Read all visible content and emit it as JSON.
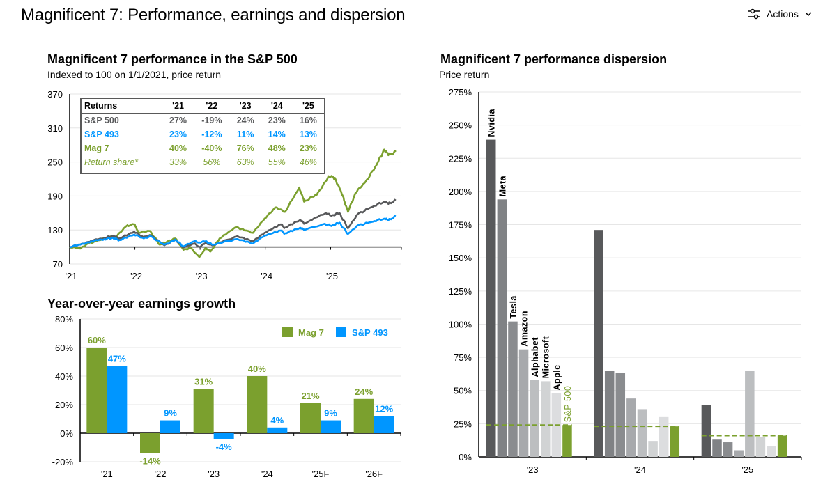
{
  "header": {
    "title": "Magnificent 7: Performance, earnings and dispersion",
    "actions_label": "Actions",
    "actions_icon": "sliders-icon",
    "chevron_icon": "chevron-down-icon"
  },
  "colors": {
    "sp500": "#58595b",
    "sp493": "#0096ff",
    "mag7": "#7ba02e"
  },
  "returns_table": {
    "header": [
      "Returns",
      "'21",
      "'22",
      "'23",
      "'24",
      "'25"
    ],
    "rows": [
      {
        "label": "S&P 500",
        "values": [
          "27%",
          "-19%",
          "24%",
          "23%",
          "16%"
        ]
      },
      {
        "label": "S&P 493",
        "values": [
          "23%",
          "-12%",
          "11%",
          "14%",
          "13%"
        ]
      },
      {
        "label": "Mag 7",
        "values": [
          "40%",
          "-40%",
          "76%",
          "48%",
          "23%"
        ]
      },
      {
        "label": "Return share*",
        "values": [
          "33%",
          "56%",
          "63%",
          "55%",
          "46%"
        ]
      }
    ]
  },
  "chart_data": [
    {
      "type": "line",
      "title": "Magnificent 7 performance in the S&P 500",
      "subtitle": "Indexed to 100 on 1/1/2021, price return",
      "xlim": [
        "2021-01-01",
        "2026-02-01"
      ],
      "ylim": [
        70,
        370
      ],
      "yticks": [
        70,
        130,
        190,
        250,
        310,
        370
      ],
      "xticks": [
        {
          "date": "2021-01-01",
          "label": "'21"
        },
        {
          "date": "2022-01-01",
          "label": "'22"
        },
        {
          "date": "2023-01-01",
          "label": "'23"
        },
        {
          "date": "2024-01-01",
          "label": "'24"
        },
        {
          "date": "2025-01-01",
          "label": "'25"
        }
      ],
      "grid": true,
      "series": [
        {
          "key": "mag7",
          "color": "#7ba02e",
          "points": [
            [
              "2021-01-01",
              100
            ],
            [
              "2021-03-01",
              97
            ],
            [
              "2021-04-15",
              106
            ],
            [
              "2021-06-01",
              110
            ],
            [
              "2021-08-01",
              117
            ],
            [
              "2021-09-15",
              118
            ],
            [
              "2021-11-15",
              137
            ],
            [
              "2021-12-28",
              140
            ],
            [
              "2022-01-25",
              125
            ],
            [
              "2022-03-28",
              128
            ],
            [
              "2022-05-20",
              104
            ],
            [
              "2022-08-15",
              115
            ],
            [
              "2022-09-30",
              95
            ],
            [
              "2022-11-10",
              98
            ],
            [
              "2022-12-28",
              82
            ],
            [
              "2023-02-01",
              98
            ],
            [
              "2023-03-01",
              92
            ],
            [
              "2023-04-20",
              115
            ],
            [
              "2023-07-20",
              135
            ],
            [
              "2023-10-25",
              125
            ],
            [
              "2023-12-28",
              150
            ],
            [
              "2024-03-01",
              170
            ],
            [
              "2024-04-20",
              162
            ],
            [
              "2024-07-10",
              205
            ],
            [
              "2024-08-05",
              180
            ],
            [
              "2024-10-15",
              192
            ],
            [
              "2024-12-20",
              225
            ],
            [
              "2025-01-25",
              222
            ],
            [
              "2025-03-10",
              190
            ],
            [
              "2025-04-08",
              162
            ],
            [
              "2025-05-20",
              195
            ],
            [
              "2025-07-15",
              215
            ],
            [
              "2025-09-15",
              245
            ],
            [
              "2025-10-28",
              272
            ],
            [
              "2025-11-20",
              262
            ],
            [
              "2025-12-31",
              268
            ]
          ]
        },
        {
          "key": "sp500",
          "color": "#58595b",
          "points": [
            [
              "2021-01-01",
              100
            ],
            [
              "2021-03-01",
              104
            ],
            [
              "2021-05-01",
              111
            ],
            [
              "2021-07-15",
              116
            ],
            [
              "2021-09-01",
              120
            ],
            [
              "2021-10-05",
              115
            ],
            [
              "2021-12-28",
              127
            ],
            [
              "2022-02-20",
              117
            ],
            [
              "2022-03-28",
              121
            ],
            [
              "2022-06-15",
              103
            ],
            [
              "2022-08-15",
              113
            ],
            [
              "2022-09-30",
              99
            ],
            [
              "2022-11-30",
              106
            ],
            [
              "2022-12-28",
              100
            ],
            [
              "2023-02-01",
              107
            ],
            [
              "2023-03-10",
              103
            ],
            [
              "2023-07-30",
              119
            ],
            [
              "2023-10-25",
              110
            ],
            [
              "2023-12-28",
              125
            ],
            [
              "2024-03-28",
              140
            ],
            [
              "2024-04-19",
              134
            ],
            [
              "2024-07-15",
              148
            ],
            [
              "2024-08-05",
              141
            ],
            [
              "2024-12-05",
              160
            ],
            [
              "2025-01-05",
              155
            ],
            [
              "2025-02-19",
              160
            ],
            [
              "2025-04-08",
              133
            ],
            [
              "2025-06-01",
              158
            ],
            [
              "2025-08-15",
              170
            ],
            [
              "2025-10-28",
              180
            ],
            [
              "2025-11-20",
              176
            ],
            [
              "2025-12-31",
              182
            ]
          ]
        },
        {
          "key": "sp493",
          "color": "#0096ff",
          "points": [
            [
              "2021-01-01",
              100
            ],
            [
              "2021-03-01",
              104
            ],
            [
              "2021-05-01",
              110
            ],
            [
              "2021-07-15",
              114
            ],
            [
              "2021-09-01",
              116
            ],
            [
              "2021-10-05",
              112
            ],
            [
              "2021-12-28",
              122
            ],
            [
              "2022-02-20",
              115
            ],
            [
              "2022-03-28",
              119
            ],
            [
              "2022-06-15",
              104
            ],
            [
              "2022-08-15",
              113
            ],
            [
              "2022-09-30",
              101
            ],
            [
              "2022-11-30",
              110
            ],
            [
              "2022-12-28",
              108
            ],
            [
              "2023-02-01",
              110
            ],
            [
              "2023-03-10",
              104
            ],
            [
              "2023-07-30",
              114
            ],
            [
              "2023-10-25",
              106
            ],
            [
              "2023-12-28",
              120
            ],
            [
              "2024-03-28",
              129
            ],
            [
              "2024-04-19",
              124
            ],
            [
              "2024-07-15",
              134
            ],
            [
              "2024-08-05",
              130
            ],
            [
              "2024-11-30",
              141
            ],
            [
              "2025-01-05",
              137
            ],
            [
              "2025-02-19",
              143
            ],
            [
              "2025-04-08",
              123
            ],
            [
              "2025-06-01",
              138
            ],
            [
              "2025-08-15",
              144
            ],
            [
              "2025-10-28",
              150
            ],
            [
              "2025-11-20",
              147
            ],
            [
              "2025-12-31",
              154
            ]
          ]
        }
      ]
    },
    {
      "type": "bar",
      "title": "Year-over-year earnings growth",
      "categories": [
        "'21",
        "'22",
        "'23",
        "'24",
        "'25F",
        "'26F"
      ],
      "ylim": [
        -20,
        80
      ],
      "yticks": [
        -20,
        0,
        20,
        40,
        60,
        80
      ],
      "grid": true,
      "legend": "top-right",
      "series": [
        {
          "name": "Mag 7",
          "color": "#7ba02e",
          "values": [
            60,
            -14,
            31,
            40,
            21,
            24
          ],
          "labels": [
            "60%",
            "-14%",
            "31%",
            "40%",
            "21%",
            "24%"
          ]
        },
        {
          "name": "S&P 493",
          "color": "#0096ff",
          "values": [
            47,
            9,
            -4,
            4,
            9,
            12
          ],
          "labels": [
            "47%",
            "9%",
            "-4%",
            "4%",
            "9%",
            "12%"
          ]
        }
      ]
    },
    {
      "type": "bar",
      "title": "Magnificent 7 performance dispersion",
      "subtitle": "Price return",
      "categories": [
        "'23",
        "'24",
        "'25"
      ],
      "ylim": [
        0,
        275
      ],
      "yticks": [
        0,
        25,
        50,
        75,
        100,
        125,
        150,
        175,
        200,
        225,
        250,
        275
      ],
      "grid": true,
      "series": [
        {
          "name": "Nvidia",
          "color": "#58595b",
          "values": [
            239,
            171,
            39
          ]
        },
        {
          "name": "Meta",
          "color": "#808285",
          "values": [
            194,
            65,
            13
          ]
        },
        {
          "name": "Tesla",
          "color": "#8a8c8f",
          "values": [
            102,
            63,
            11
          ]
        },
        {
          "name": "Amazon",
          "color": "#a7a9ac",
          "values": [
            81,
            44,
            5
          ]
        },
        {
          "name": "Alphabet",
          "color": "#bcbec0",
          "values": [
            58,
            36,
            65
          ]
        },
        {
          "name": "Microsoft",
          "color": "#d1d3d4",
          "values": [
            57,
            12,
            15
          ]
        },
        {
          "name": "Apple",
          "color": "#dcdddf",
          "values": [
            48,
            30,
            8
          ]
        },
        {
          "name": "S&P 500",
          "color": "#7ba02e",
          "values": [
            24,
            23,
            16
          ],
          "dashed_reference": true
        }
      ]
    }
  ]
}
